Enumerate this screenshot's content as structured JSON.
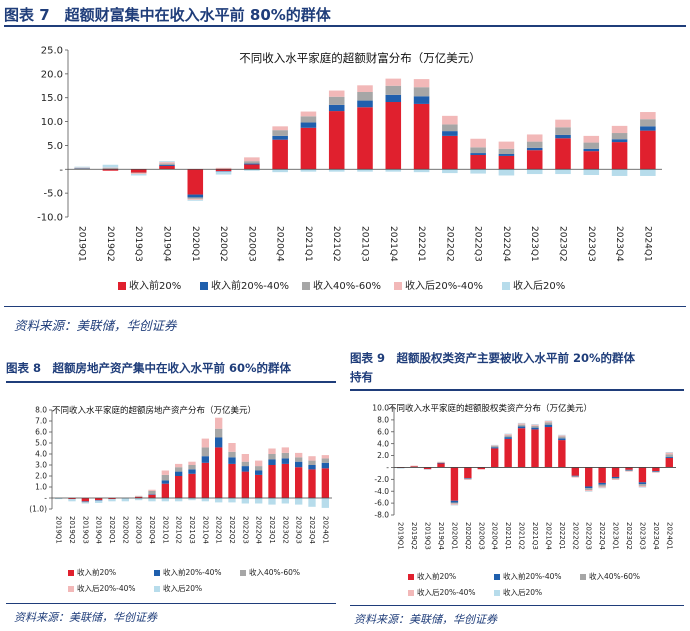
{
  "figures": {
    "fig7": {
      "title": "图表 7　超额财富集中在收入水平前 80%的群体",
      "source": "资料来源：美联储，华创证券"
    },
    "fig8": {
      "title": "图表 8　超额房地产资产集中在收入水平前 60%的群体",
      "source": "资料来源：美联储，华创证券"
    },
    "fig9": {
      "title_line1": "图表 9　超额股权类资产主要被收入水平前 20%的群体",
      "title_line2": "持有",
      "source": "资料来源：美联储，华创证券"
    }
  },
  "chart_data": [
    {
      "id": "fig7",
      "type": "bar",
      "stacked": true,
      "title": "不同收入水平家庭的超额财富分布（万亿美元）",
      "ylim": [
        -10,
        25
      ],
      "yticks": [
        "25.0",
        "20.0",
        "15.0",
        "10.0",
        "5.0",
        "-",
        "-5.0",
        "-10.0"
      ],
      "categories": [
        "2019Q1",
        "2019Q2",
        "2019Q3",
        "2019Q4",
        "2020Q1",
        "2020Q2",
        "2020Q3",
        "2020Q4",
        "2021Q1",
        "2021Q2",
        "2021Q3",
        "2021Q4",
        "2022Q1",
        "2022Q2",
        "2022Q3",
        "2022Q4",
        "2023Q1",
        "2023Q2",
        "2023Q3",
        "2023Q4",
        "2024Q1"
      ],
      "series": [
        {
          "name": "收入前20%",
          "color": "#e0202e",
          "values": [
            0.1,
            -0.3,
            -0.7,
            0.7,
            -5.3,
            -0.4,
            1.0,
            6.2,
            8.7,
            12.2,
            13.0,
            14.1,
            13.7,
            7.0,
            3.0,
            2.8,
            4.0,
            6.5,
            3.8,
            5.7,
            8.1
          ]
        },
        {
          "name": "收入前20%-40%",
          "color": "#1f5fad",
          "values": [
            0.05,
            0.05,
            0,
            0.2,
            -0.6,
            -0.1,
            0.2,
            0.8,
            1.1,
            1.3,
            1.4,
            1.5,
            1.6,
            1.0,
            0.4,
            0.4,
            0.5,
            0.7,
            0.5,
            0.6,
            0.9
          ]
        },
        {
          "name": "收入40%-60%",
          "color": "#a6a6a6",
          "values": [
            0.1,
            0.2,
            -0.1,
            0.3,
            -0.3,
            0,
            0.5,
            1.2,
            1.3,
            1.7,
            1.8,
            1.9,
            1.9,
            1.4,
            1.2,
            1.1,
            1.3,
            1.6,
            1.3,
            1.3,
            1.5
          ]
        },
        {
          "name": "收入后20%-40%",
          "color": "#f2b8b8",
          "values": [
            0.1,
            0.1,
            -0.2,
            0.3,
            -0.2,
            0.3,
            0.8,
            0.8,
            1.0,
            1.3,
            1.4,
            1.5,
            1.7,
            1.8,
            1.8,
            1.5,
            1.5,
            1.6,
            1.4,
            1.5,
            1.5
          ]
        },
        {
          "name": "收入后20%",
          "color": "#b7dceb",
          "values": [
            0.2,
            0.6,
            -0.3,
            0.2,
            -0.2,
            -0.6,
            -0.3,
            -0.6,
            -0.5,
            -0.5,
            -0.5,
            -0.5,
            -0.6,
            -0.8,
            -0.9,
            -1.3,
            -1.0,
            -1.0,
            -1.2,
            -1.4,
            -1.4
          ]
        }
      ]
    },
    {
      "id": "fig8",
      "type": "bar",
      "stacked": true,
      "title": "不同收入水平家庭的超额房地产资产分布（万亿美元）",
      "ylim": [
        -1,
        8
      ],
      "yticks": [
        "8.0",
        "7.0",
        "6.0",
        "5.0",
        "4.0",
        "3.0",
        "2.0",
        "1.0",
        "-",
        "(1.0)"
      ],
      "categories": [
        "2019Q1",
        "2019Q2",
        "2019Q3",
        "2019Q4",
        "2020Q1",
        "2020Q2",
        "2020Q3",
        "2020Q4",
        "2021Q1",
        "2021Q2",
        "2021Q3",
        "2021Q4",
        "2022Q1",
        "2022Q2",
        "2022Q3",
        "2022Q4",
        "2023Q1",
        "2023Q2",
        "2023Q3",
        "2023Q4",
        "2024Q1"
      ],
      "series": [
        {
          "name": "收入前20%",
          "color": "#e0202e",
          "values": [
            0,
            -0.1,
            -0.3,
            -0.2,
            -0.1,
            0,
            0.1,
            0.3,
            1.3,
            2.0,
            2.2,
            3.2,
            4.6,
            3.1,
            2.4,
            2.1,
            3.0,
            3.1,
            2.8,
            2.6,
            2.7
          ]
        },
        {
          "name": "收入前20%-40%",
          "color": "#1f5fad",
          "values": [
            0,
            0,
            -0.05,
            -0.05,
            0,
            0,
            0,
            0.05,
            0.3,
            0.4,
            0.4,
            0.6,
            0.9,
            0.6,
            0.5,
            0.4,
            0.5,
            0.5,
            0.5,
            0.4,
            0.5
          ]
        },
        {
          "name": "收入40%-60%",
          "color": "#a6a6a6",
          "values": [
            0,
            0,
            -0.05,
            0,
            0,
            0,
            0.05,
            0.3,
            0.5,
            0.4,
            0.4,
            0.8,
            0.8,
            0.5,
            0.4,
            0.4,
            0.5,
            0.5,
            0.4,
            0.4,
            0.4
          ]
        },
        {
          "name": "收入后20%-40%",
          "color": "#f2b8b8",
          "values": [
            0,
            0,
            0,
            0,
            0,
            0,
            0.05,
            0.1,
            0.4,
            0.3,
            0.3,
            0.8,
            1.0,
            0.8,
            0.7,
            0.5,
            0.5,
            0.5,
            0.4,
            0.4,
            0.3
          ]
        },
        {
          "name": "收入后20%",
          "color": "#b7dceb",
          "values": [
            -0.1,
            -0.2,
            -0.1,
            -0.2,
            -0.2,
            -0.3,
            -0.2,
            -0.3,
            -0.3,
            -0.3,
            -0.2,
            -0.3,
            -0.4,
            -0.4,
            -0.5,
            -0.5,
            -0.6,
            -0.5,
            -0.6,
            -0.8,
            -0.9
          ]
        }
      ]
    },
    {
      "id": "fig9",
      "type": "bar",
      "stacked": true,
      "title": "不同收入水平家庭的超额股权类资产分布（万亿美元）",
      "ylim": [
        -8,
        10
      ],
      "yticks": [
        "10.0",
        "8.0",
        "6.0",
        "4.0",
        "2.0",
        "-",
        "-2.0",
        "-4.0",
        "-6.0",
        "-8.0"
      ],
      "categories": [
        "2019Q1",
        "2019Q2",
        "2019Q3",
        "2019Q4",
        "2020Q1",
        "2020Q2",
        "2020Q3",
        "2020Q4",
        "2021Q1",
        "2021Q2",
        "2021Q3",
        "2021Q4",
        "2022Q1",
        "2022Q2",
        "2022Q3",
        "2022Q4",
        "2023Q1",
        "2023Q2",
        "2023Q3",
        "2023Q4",
        "2024Q1"
      ],
      "series": [
        {
          "name": "收入前20%",
          "color": "#e0202e",
          "values": [
            -0.1,
            0.2,
            -0.3,
            0.7,
            -5.6,
            -1.8,
            -0.3,
            3.2,
            4.8,
            6.6,
            6.4,
            6.8,
            4.6,
            -1.4,
            -3.2,
            -2.6,
            -1.6,
            -0.4,
            -2.5,
            -0.6,
            1.6
          ]
        },
        {
          "name": "收入前20%-40%",
          "color": "#1f5fad",
          "values": [
            0,
            0,
            0,
            0.05,
            -0.3,
            -0.1,
            0,
            0.2,
            0.3,
            0.3,
            0.3,
            0.4,
            0.3,
            -0.1,
            -0.3,
            -0.3,
            -0.2,
            -0.1,
            -0.3,
            -0.1,
            0.2
          ]
        },
        {
          "name": "收入40%-60%",
          "color": "#a6a6a6",
          "values": [
            0,
            0.05,
            0,
            0.1,
            -0.2,
            -0.1,
            0,
            0.2,
            0.3,
            0.3,
            0.3,
            0.4,
            0.3,
            -0.1,
            -0.3,
            -0.3,
            -0.2,
            -0.1,
            -0.3,
            -0.1,
            0.4
          ]
        },
        {
          "name": "收入后20%-40%",
          "color": "#f2b8b8",
          "values": [
            0,
            0.05,
            0,
            0.1,
            -0.2,
            -0.1,
            0,
            0.1,
            0.2,
            0.2,
            0.2,
            0.2,
            0.2,
            -0.1,
            -0.2,
            -0.2,
            -0.1,
            -0.1,
            -0.2,
            -0.1,
            0.3
          ]
        },
        {
          "name": "收入后20%",
          "color": "#b7dceb",
          "values": [
            -0.1,
            0,
            -0.1,
            0,
            -0.1,
            0,
            0,
            0.1,
            0.1,
            0.1,
            0.1,
            0.1,
            0.1,
            0,
            -0.1,
            -0.1,
            0,
            0,
            -0.1,
            0,
            0.1
          ]
        }
      ]
    }
  ]
}
